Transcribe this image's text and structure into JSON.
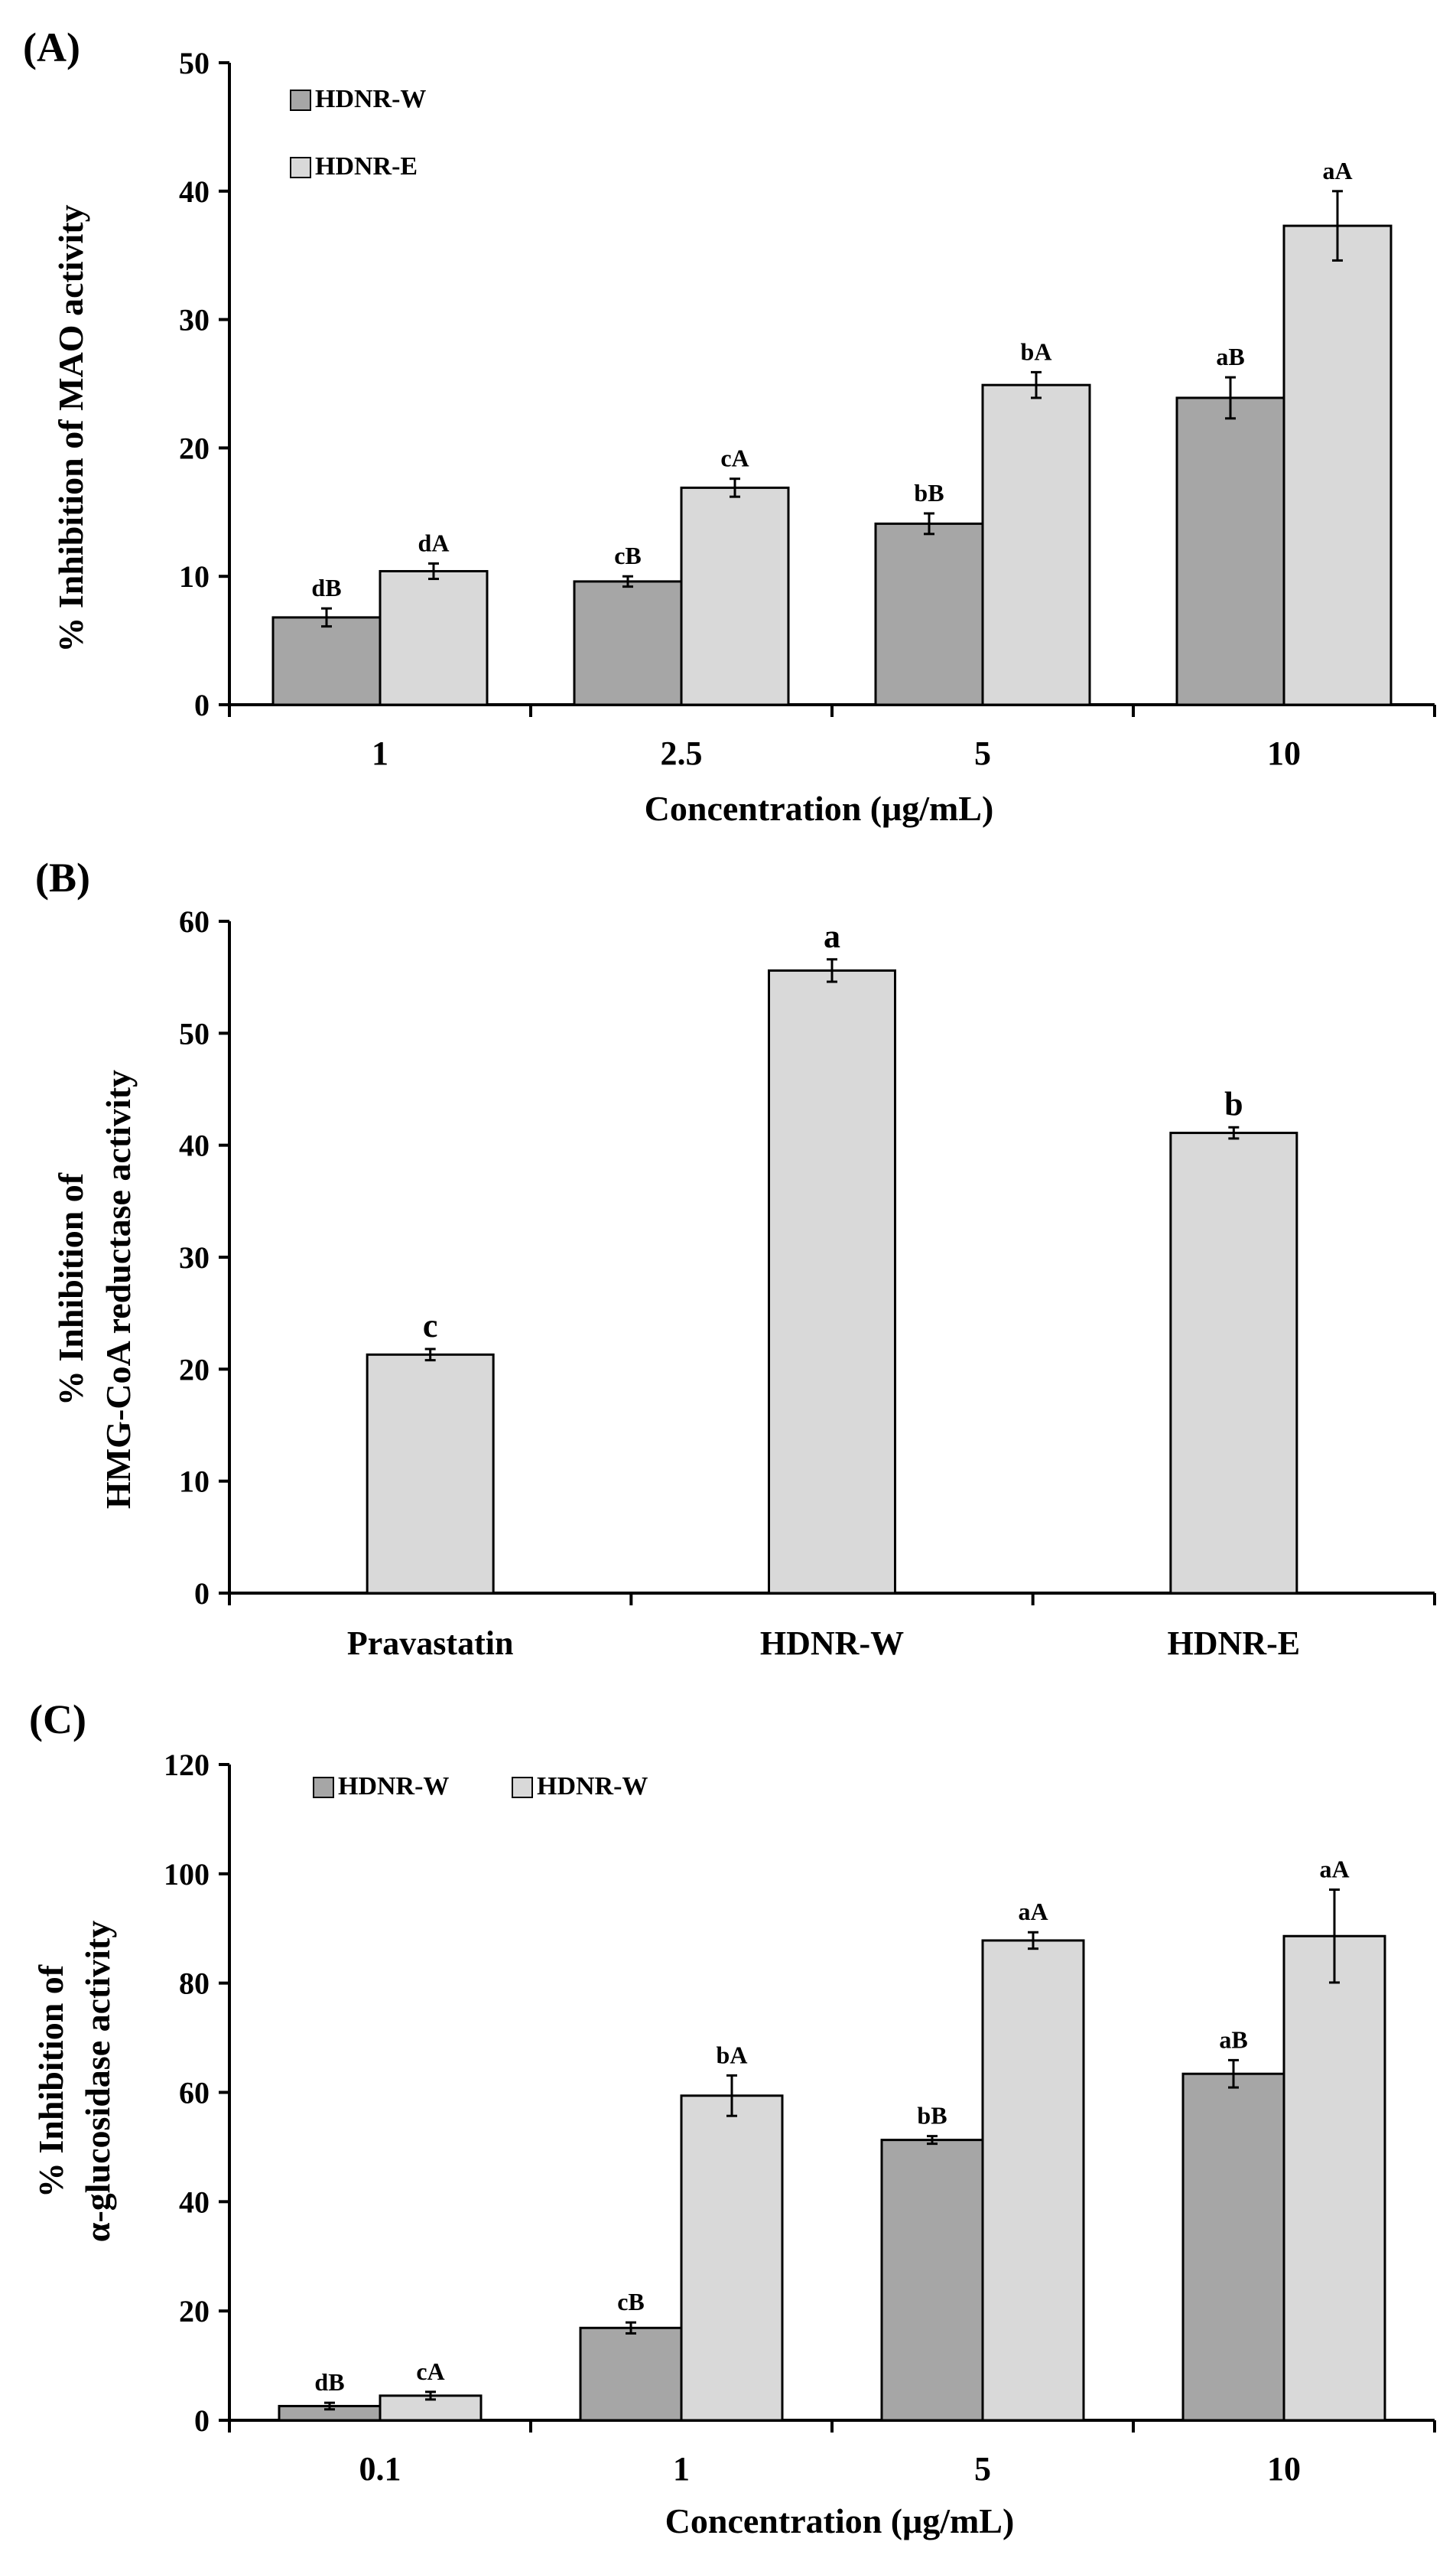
{
  "colors": {
    "series_w": "#a6a6a6",
    "series_e": "#d9d9d9",
    "stroke": "#000000"
  },
  "chart_data": [
    {
      "panel": "(A)",
      "type": "bar",
      "categories": [
        "1",
        "2.5",
        "5",
        "10"
      ],
      "series": [
        {
          "name": "HDNR-W",
          "values": [
            6.8,
            9.6,
            14.1,
            23.9
          ],
          "errors": [
            0.7,
            0.4,
            0.8,
            1.6
          ],
          "labels": [
            "dB",
            "cB",
            "bB",
            "aB"
          ]
        },
        {
          "name": "HDNR-E",
          "values": [
            10.4,
            16.9,
            24.9,
            37.3
          ],
          "errors": [
            0.6,
            0.7,
            1.0,
            2.7
          ],
          "labels": [
            "dA",
            "cA",
            "bA",
            "aA"
          ]
        }
      ],
      "xlabel": "Concentration (μg/mL)",
      "ylabel": "% Inhibition of MAO activity",
      "ylim": [
        0,
        50
      ],
      "yticks": [
        0,
        10,
        20,
        30,
        40,
        50
      ],
      "legend": "top-left"
    },
    {
      "panel": "(B)",
      "type": "bar",
      "categories": [
        "Pravastatin",
        "HDNR-W",
        "HDNR-E"
      ],
      "series": [
        {
          "name": "",
          "values": [
            21.3,
            55.6,
            41.1
          ],
          "errors": [
            0.5,
            1.0,
            0.5
          ],
          "labels": [
            "c",
            "a",
            "b"
          ]
        }
      ],
      "xlabel": "",
      "ylabel_lines": [
        "% Inhibition of",
        "HMG-CoA reductase activity"
      ],
      "ylim": [
        0,
        60
      ],
      "yticks": [
        0,
        10,
        20,
        30,
        40,
        50,
        60
      ]
    },
    {
      "panel": "(C)",
      "type": "bar",
      "categories": [
        "0.1",
        "1",
        "5",
        "10"
      ],
      "series": [
        {
          "name": "HDNR-W",
          "values": [
            2.6,
            16.9,
            51.3,
            63.4
          ],
          "errors": [
            0.6,
            1.0,
            0.7,
            2.5
          ],
          "labels": [
            "dB",
            "cB",
            "bB",
            "aB"
          ]
        },
        {
          "name": "HDNR-W",
          "values": [
            4.5,
            59.4,
            87.8,
            88.6
          ],
          "errors": [
            0.7,
            3.7,
            1.5,
            8.5
          ],
          "labels": [
            "cA",
            "bA",
            "aA",
            "aA"
          ]
        }
      ],
      "xlabel": "Concentration (μg/mL)",
      "ylabel_lines": [
        "% Inhibition of",
        "α-glucosidase activity"
      ],
      "ylim": [
        0,
        120
      ],
      "yticks": [
        0,
        20,
        40,
        60,
        80,
        100,
        120
      ],
      "legend": "top-left"
    }
  ]
}
